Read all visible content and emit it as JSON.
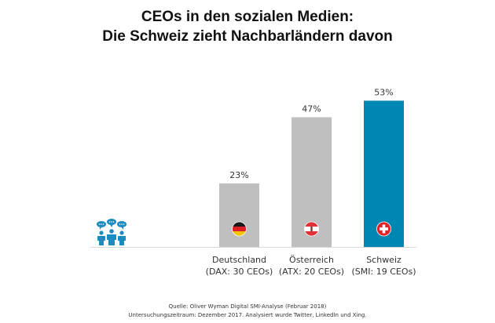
{
  "chart_data": {
    "type": "bar",
    "title": "CEOs in den sozialen Medien:",
    "subtitle": "Die Schweiz zieht Nachbarländern davon",
    "categories": [
      "Deutschland",
      "Österreich",
      "Schweiz"
    ],
    "sublabels": [
      "(DAX: 30 CEOs)",
      "(ATX:  20 CEOs)",
      "(SMI: 19 CEOs)"
    ],
    "values": [
      23,
      47,
      53
    ],
    "data_labels": [
      "23%",
      "47%",
      "53%"
    ],
    "colors": [
      "#bfbfbf",
      "#bfbfbf",
      "#0086b3"
    ],
    "flags": [
      "germany-flag",
      "austria-flag",
      "switzerland-flag"
    ],
    "xlabel": "",
    "ylabel": "",
    "ylim": [
      0,
      60
    ],
    "grid": false,
    "legend": "none",
    "unit": "%"
  },
  "decor": {
    "icon": "people-chat-icon",
    "icon_color": "#1b8bc0",
    "axis_color": "#d9d9d9"
  },
  "footer": {
    "source_line": "Quelle: Oliver Wyman Digital SMI-Analyse (Februar 2018)",
    "period_line": "Untersuchungszeitraum:  Dezember  2017. Analysiert wurde Twitter, LinkedIn und Xing."
  }
}
